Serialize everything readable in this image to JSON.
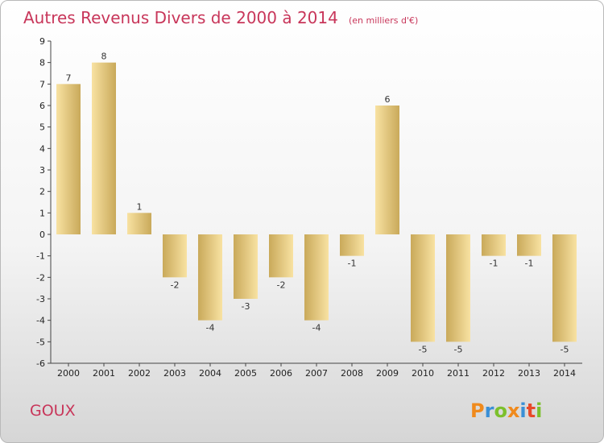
{
  "chart_data": {
    "type": "bar",
    "title": "Autres Revenus Divers de 2000 à 2014",
    "subtitle": "(en milliers d'€)",
    "xlabel": "",
    "ylabel": "",
    "categories": [
      "2000",
      "2001",
      "2002",
      "2003",
      "2004",
      "2005",
      "2006",
      "2007",
      "2008",
      "2009",
      "2010",
      "2011",
      "2012",
      "2013",
      "2014"
    ],
    "values": [
      7,
      8,
      1,
      -2,
      -4,
      -3,
      -2,
      -4,
      -1,
      6,
      -5,
      -5,
      -1,
      -1,
      -5
    ],
    "ylim": [
      -6,
      9
    ],
    "yticks": [
      -6,
      -5,
      -4,
      -3,
      -2,
      -1,
      0,
      1,
      2,
      3,
      4,
      5,
      6,
      7,
      8,
      9
    ],
    "grid": false,
    "bar_color": "#e6cb7a"
  },
  "place": "GOUX",
  "brand": {
    "letters": [
      "P",
      "r",
      "o",
      "x",
      "i",
      "t",
      "i"
    ],
    "colors": [
      "#f08a1c",
      "#3a8fd6",
      "#7cc02c",
      "#f08a1c",
      "#3a8fd6",
      "#e84a2a",
      "#7cc02c"
    ]
  }
}
